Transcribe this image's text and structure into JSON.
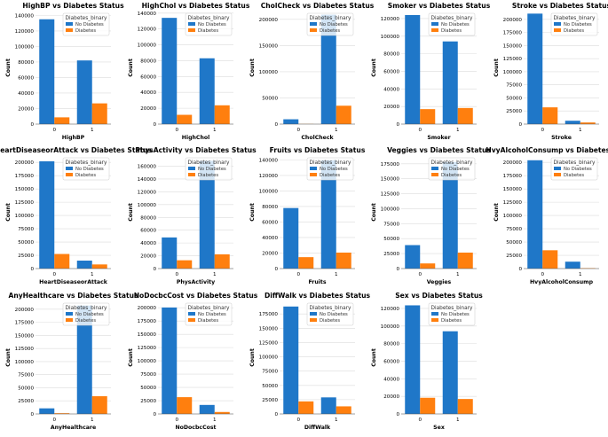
{
  "colors": {
    "no_diabetes": "#1f77c8",
    "diabetes": "#ff7f0e",
    "grid": "#dcdcdc"
  },
  "chart_data": [
    {
      "type": "bar",
      "title": "HighBP vs Diabetes Status",
      "xlabel": "HighBP",
      "ylabel": "Count",
      "categories": [
        "0",
        "1"
      ],
      "ylim": [
        0,
        145000
      ],
      "yticks": [
        0,
        20000,
        40000,
        60000,
        80000,
        100000,
        120000,
        140000
      ],
      "legend_title": "Diabetes_binary",
      "series": [
        {
          "name": "No Diabetes",
          "values": [
            135000,
            82000
          ]
        },
        {
          "name": "Diabetes",
          "values": [
            8700,
            26700
          ]
        }
      ]
    },
    {
      "type": "bar",
      "title": "HighChol vs Diabetes Status",
      "xlabel": "HighChol",
      "ylabel": "Count",
      "categories": [
        "0",
        "1"
      ],
      "ylim": [
        0,
        142000
      ],
      "yticks": [
        0,
        20000,
        40000,
        60000,
        80000,
        100000,
        120000,
        140000
      ],
      "legend_title": "Diabetes_binary",
      "series": [
        {
          "name": "No Diabetes",
          "values": [
            134000,
            83000
          ]
        },
        {
          "name": "Diabetes",
          "values": [
            11700,
            23700
          ]
        }
      ]
    },
    {
      "type": "bar",
      "title": "CholCheck vs Diabetes Status",
      "xlabel": "CholCheck",
      "ylabel": "Count",
      "categories": [
        "0",
        "1"
      ],
      "ylim": [
        0,
        215000
      ],
      "yticks": [
        0,
        50000,
        100000,
        150000,
        200000
      ],
      "legend_title": "Diabetes_binary",
      "series": [
        {
          "name": "No Diabetes",
          "values": [
            9200,
            209000
          ]
        },
        {
          "name": "Diabetes",
          "values": [
            250,
            35100
          ]
        }
      ]
    },
    {
      "type": "bar",
      "title": "Smoker vs Diabetes Status",
      "xlabel": "Smoker",
      "ylabel": "Count",
      "categories": [
        "0",
        "1"
      ],
      "ylim": [
        0,
        128000
      ],
      "yticks": [
        0,
        20000,
        40000,
        60000,
        80000,
        100000,
        120000
      ],
      "legend_title": "Diabetes_binary",
      "series": [
        {
          "name": "No Diabetes",
          "values": [
            124000,
            94000
          ]
        },
        {
          "name": "Diabetes",
          "values": [
            17000,
            18300
          ]
        }
      ]
    },
    {
      "type": "bar",
      "title": "Stroke vs Diabetes Status",
      "xlabel": "Stroke",
      "ylabel": "Count",
      "categories": [
        "0",
        "1"
      ],
      "ylim": [
        0,
        215000
      ],
      "yticks": [
        0,
        25000,
        50000,
        75000,
        100000,
        125000,
        150000,
        175000,
        200000
      ],
      "legend_title": "Diabetes_binary",
      "series": [
        {
          "name": "No Diabetes",
          "values": [
            211000,
            6400
          ]
        },
        {
          "name": "Diabetes",
          "values": [
            32000,
            3100
          ]
        }
      ]
    },
    {
      "type": "bar",
      "title": "HeartDiseaseorAttack vs Diabetes Status",
      "xlabel": "HeartDiseaseorAttack",
      "ylabel": "Count",
      "categories": [
        "0",
        "1"
      ],
      "ylim": [
        0,
        212000
      ],
      "yticks": [
        0,
        25000,
        50000,
        75000,
        100000,
        125000,
        150000,
        175000,
        200000
      ],
      "legend_title": "Diabetes_binary",
      "series": [
        {
          "name": "No Diabetes",
          "values": [
            202000,
            15000
          ]
        },
        {
          "name": "Diabetes",
          "values": [
            27500,
            7800
          ]
        }
      ]
    },
    {
      "type": "bar",
      "title": "PhysActivity vs Diabetes Status",
      "xlabel": "PhysActivity",
      "ylabel": "Count",
      "categories": [
        "0",
        "1"
      ],
      "ylim": [
        0,
        176000
      ],
      "yticks": [
        0,
        20000,
        40000,
        60000,
        80000,
        100000,
        120000,
        140000,
        160000
      ],
      "legend_title": "Diabetes_binary",
      "series": [
        {
          "name": "No Diabetes",
          "values": [
            48700,
            168500
          ]
        },
        {
          "name": "Diabetes",
          "values": [
            13000,
            22300
          ]
        }
      ]
    },
    {
      "type": "bar",
      "title": "Fruits vs Diabetes Status",
      "xlabel": "Fruits",
      "ylabel": "Count",
      "categories": [
        "0",
        "1"
      ],
      "ylim": [
        0,
        145000
      ],
      "yticks": [
        0,
        20000,
        40000,
        60000,
        80000,
        100000,
        120000,
        140000
      ],
      "legend_title": "Diabetes_binary",
      "series": [
        {
          "name": "No Diabetes",
          "values": [
            78000,
            139500
          ]
        },
        {
          "name": "Diabetes",
          "values": [
            14700,
            20600
          ]
        }
      ]
    },
    {
      "type": "bar",
      "title": "Veggies vs Diabetes Status",
      "xlabel": "Veggies",
      "ylabel": "Count",
      "categories": [
        "0",
        "1"
      ],
      "ylim": [
        0,
        188000
      ],
      "yticks": [
        0,
        25000,
        50000,
        75000,
        100000,
        125000,
        150000,
        175000
      ],
      "legend_title": "Diabetes_binary",
      "series": [
        {
          "name": "No Diabetes",
          "values": [
            39200,
            178000
          ]
        },
        {
          "name": "Diabetes",
          "values": [
            8600,
            26700
          ]
        }
      ]
    },
    {
      "type": "bar",
      "title": "HvyAlcoholConsump vs Diabetes Status",
      "xlabel": "HvyAlcoholConsump",
      "ylabel": "Count",
      "categories": [
        "0",
        "1"
      ],
      "ylim": [
        0,
        212000
      ],
      "yticks": [
        0,
        25000,
        50000,
        75000,
        100000,
        125000,
        150000,
        175000,
        200000
      ],
      "legend_title": "Diabetes_binary",
      "series": [
        {
          "name": "No Diabetes",
          "values": [
            204000,
            13000
          ]
        },
        {
          "name": "Diabetes",
          "values": [
            34500,
            800
          ]
        }
      ]
    },
    {
      "type": "bar",
      "title": "AnyHealthcare vs Diabetes Status",
      "xlabel": "AnyHealthcare",
      "ylabel": "Count",
      "categories": [
        "0",
        "1"
      ],
      "ylim": [
        0,
        215000
      ],
      "yticks": [
        0,
        25000,
        50000,
        75000,
        100000,
        125000,
        150000,
        175000,
        200000
      ],
      "legend_title": "Diabetes_binary",
      "series": [
        {
          "name": "No Diabetes",
          "values": [
            10700,
            207000
          ]
        },
        {
          "name": "Diabetes",
          "values": [
            1400,
            33900
          ]
        }
      ]
    },
    {
      "type": "bar",
      "title": "NoDocbcCost vs Diabetes Status",
      "xlabel": "NoDocbcCost",
      "ylabel": "Count",
      "categories": [
        "0",
        "1"
      ],
      "ylim": [
        0,
        212000
      ],
      "yticks": [
        0,
        25000,
        50000,
        75000,
        100000,
        125000,
        150000,
        175000,
        200000
      ],
      "legend_title": "Diabetes_binary",
      "series": [
        {
          "name": "No Diabetes",
          "values": [
            200500,
            17000
          ]
        },
        {
          "name": "Diabetes",
          "values": [
            31600,
            3700
          ]
        }
      ]
    },
    {
      "type": "bar",
      "title": "DiffWalk vs Diabetes Status",
      "xlabel": "DiffWalk",
      "ylabel": "Count",
      "categories": [
        "0",
        "1"
      ],
      "ylim": [
        0,
        197000
      ],
      "yticks": [
        0,
        25000,
        50000,
        75000,
        100000,
        125000,
        150000,
        175000
      ],
      "legend_title": "Diabetes_binary",
      "series": [
        {
          "name": "No Diabetes",
          "values": [
            188000,
            29000
          ]
        },
        {
          "name": "Diabetes",
          "values": [
            22000,
            13300
          ]
        }
      ]
    },
    {
      "type": "bar",
      "title": "Sex vs Diabetes Status",
      "xlabel": "Sex",
      "ylabel": "Count",
      "categories": [
        "0",
        "1"
      ],
      "ylim": [
        0,
        128000
      ],
      "yticks": [
        0,
        20000,
        40000,
        60000,
        80000,
        100000,
        120000
      ],
      "legend_title": "Diabetes_binary",
      "series": [
        {
          "name": "No Diabetes",
          "values": [
            123500,
            94000
          ]
        },
        {
          "name": "Diabetes",
          "values": [
            18400,
            17000
          ]
        }
      ]
    }
  ]
}
